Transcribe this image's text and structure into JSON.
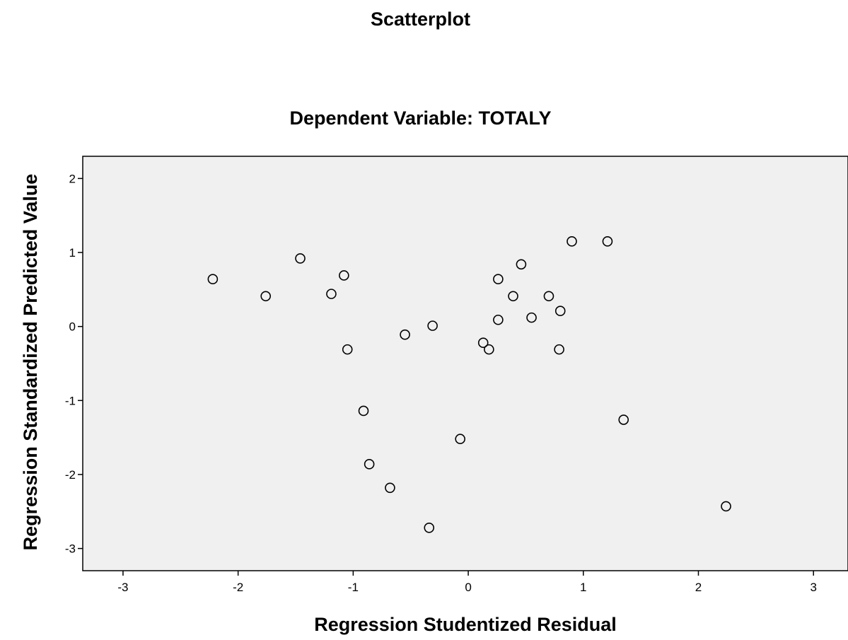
{
  "chart_data": {
    "type": "scatter",
    "title": "Scatterplot",
    "subtitle": "Dependent Variable: TOTALY",
    "xlabel": "Regression Studentized Residual",
    "ylabel": "Regression Standardized Predicted Value",
    "xlim": [
      -3.35,
      3.3
    ],
    "ylim": [
      -3.3,
      2.3
    ],
    "xticks": [
      "-3",
      "-2",
      "-1",
      "0",
      "1",
      "2",
      "3"
    ],
    "yticks": [
      "2",
      "1",
      "0",
      "-1",
      "-2",
      "-3"
    ],
    "grid": false,
    "plot_background": "#f0f0f0",
    "marker_color": "#000000",
    "points": [
      {
        "x": -2.22,
        "y": 0.64
      },
      {
        "x": -1.76,
        "y": 0.41
      },
      {
        "x": -1.46,
        "y": 0.92
      },
      {
        "x": -1.19,
        "y": 0.44
      },
      {
        "x": -1.08,
        "y": 0.69
      },
      {
        "x": -1.05,
        "y": -0.31
      },
      {
        "x": -0.91,
        "y": -1.14
      },
      {
        "x": -0.86,
        "y": -1.86
      },
      {
        "x": -0.68,
        "y": -2.18
      },
      {
        "x": -0.55,
        "y": -0.11
      },
      {
        "x": -0.34,
        "y": -2.72
      },
      {
        "x": -0.31,
        "y": 0.01
      },
      {
        "x": -0.07,
        "y": -1.52
      },
      {
        "x": 0.13,
        "y": -0.22
      },
      {
        "x": 0.18,
        "y": -0.31
      },
      {
        "x": 0.26,
        "y": 0.09
      },
      {
        "x": 0.26,
        "y": 0.64
      },
      {
        "x": 0.39,
        "y": 0.41
      },
      {
        "x": 0.46,
        "y": 0.84
      },
      {
        "x": 0.55,
        "y": 0.12
      },
      {
        "x": 0.7,
        "y": 0.41
      },
      {
        "x": 0.79,
        "y": -0.31
      },
      {
        "x": 0.8,
        "y": 0.21
      },
      {
        "x": 0.9,
        "y": 1.15
      },
      {
        "x": 1.21,
        "y": 1.15
      },
      {
        "x": 1.35,
        "y": -1.26
      },
      {
        "x": 2.24,
        "y": -2.43
      }
    ]
  }
}
